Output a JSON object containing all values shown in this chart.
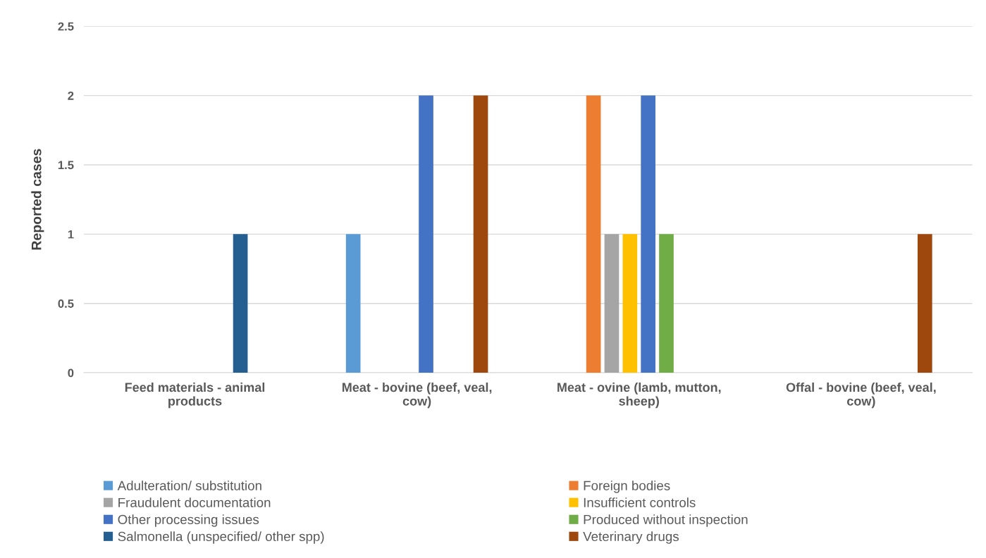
{
  "chart_data": {
    "type": "bar",
    "ylabel": "Reported cases",
    "categories": [
      "Feed materials - animal products",
      "Meat - bovine (beef, veal, cow)",
      "Meat - ovine (lamb, mutton, sheep)",
      "Offal - bovine (beef, veal, cow)"
    ],
    "series": [
      {
        "name": "Adulteration/ substitution",
        "color": "#5b9bd5",
        "values": [
          null,
          1,
          null,
          null
        ]
      },
      {
        "name": "Foreign bodies",
        "color": "#ed7d31",
        "values": [
          null,
          null,
          2,
          null
        ]
      },
      {
        "name": "Fraudulent documentation",
        "color": "#a5a5a5",
        "values": [
          null,
          null,
          1,
          null
        ]
      },
      {
        "name": "Insufficient controls",
        "color": "#ffc000",
        "values": [
          null,
          null,
          1,
          null
        ]
      },
      {
        "name": "Other processing issues",
        "color": "#4472c4",
        "values": [
          null,
          2,
          2,
          null
        ]
      },
      {
        "name": "Produced without inspection",
        "color": "#70ad47",
        "values": [
          null,
          null,
          1,
          null
        ]
      },
      {
        "name": "Salmonella (unspecified/ other spp)",
        "color": "#255e91",
        "values": [
          1,
          null,
          null,
          null
        ]
      },
      {
        "name": "Veterinary drugs",
        "color": "#9e480e",
        "values": [
          null,
          2,
          null,
          1
        ]
      }
    ],
    "ylim": [
      0,
      2.5
    ],
    "yticks": [
      0,
      0.5,
      1,
      1.5,
      2,
      2.5
    ],
    "grid": "y",
    "legend": "bottom"
  }
}
